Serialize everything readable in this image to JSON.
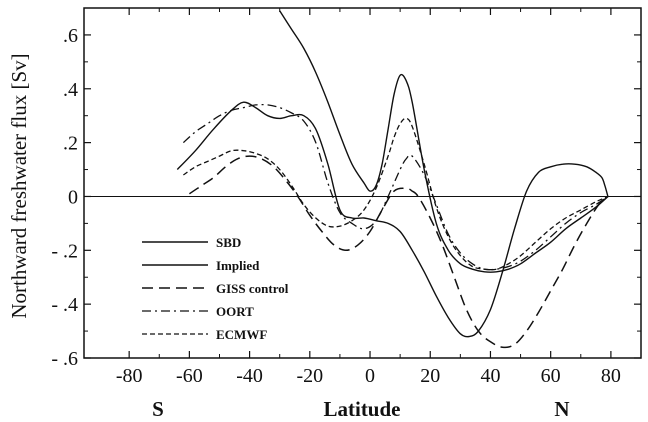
{
  "chart_data": {
    "type": "line",
    "xlabel": "Latitude",
    "ylabel": "Northward freshwater flux [Sv]",
    "xlim": [
      -95,
      90
    ],
    "ylim": [
      -0.6,
      0.7
    ],
    "x_ticks": [
      -80,
      -60,
      -40,
      -20,
      0,
      20,
      40,
      60,
      80
    ],
    "x_tick_labels": [
      "-80",
      "-60",
      "-40",
      "-20",
      "0",
      "20",
      "40",
      "60",
      "80"
    ],
    "y_ticks": [
      0.6,
      0.4,
      0.2,
      0,
      -0.2,
      -0.4,
      -0.6
    ],
    "y_tick_labels": [
      ".6",
      ".4",
      ".2",
      "0",
      "- .2",
      "- .4",
      "- .6"
    ],
    "hemisphere_labels": {
      "south": "S",
      "north": "N"
    },
    "legend_position": "lower-left",
    "zero_line": true,
    "grid": false,
    "series": [
      {
        "name": "SBD",
        "dash": "solid",
        "x": [
          -64,
          -58,
          -52,
          -46,
          -42,
          -38,
          -34,
          -30,
          -26,
          -22,
          -18,
          -14,
          -10,
          -6,
          -2,
          2,
          6,
          10,
          14,
          18,
          22,
          26,
          30,
          33,
          36,
          40,
          44,
          48,
          52,
          56,
          60,
          64,
          68,
          72,
          75,
          77,
          78,
          79
        ],
        "y": [
          0.1,
          0.17,
          0.25,
          0.32,
          0.35,
          0.33,
          0.3,
          0.29,
          0.3,
          0.3,
          0.25,
          0.12,
          -0.05,
          -0.08,
          -0.08,
          -0.09,
          -0.1,
          -0.13,
          -0.2,
          -0.28,
          -0.37,
          -0.45,
          -0.51,
          -0.52,
          -0.5,
          -0.42,
          -0.28,
          -0.12,
          0.02,
          0.09,
          0.11,
          0.12,
          0.12,
          0.11,
          0.09,
          0.07,
          0.04,
          0.0
        ]
      },
      {
        "name": "Implied",
        "dash": "solid",
        "x": [
          -30,
          -26,
          -22,
          -18,
          -14,
          -10,
          -6,
          -2,
          0,
          2,
          4,
          6,
          8,
          10,
          12,
          14,
          18,
          22,
          26,
          30,
          34,
          38,
          42,
          46,
          50,
          55,
          60,
          65,
          70,
          75,
          79
        ],
        "y": [
          0.69,
          0.62,
          0.55,
          0.46,
          0.35,
          0.23,
          0.12,
          0.05,
          0.02,
          0.04,
          0.12,
          0.25,
          0.38,
          0.45,
          0.43,
          0.35,
          0.1,
          -0.1,
          -0.2,
          -0.25,
          -0.27,
          -0.28,
          -0.28,
          -0.27,
          -0.25,
          -0.21,
          -0.17,
          -0.12,
          -0.08,
          -0.04,
          0.0
        ]
      },
      {
        "name": "GISS control",
        "dash": "dashed",
        "x": [
          -60,
          -56,
          -52,
          -48,
          -44,
          -40,
          -36,
          -32,
          -28,
          -24,
          -20,
          -16,
          -12,
          -8,
          -4,
          0,
          4,
          8,
          12,
          14,
          16,
          20,
          24,
          28,
          32,
          36,
          40,
          44,
          48,
          52,
          56,
          60,
          64,
          68,
          72,
          76,
          79
        ],
        "y": [
          0.01,
          0.04,
          0.07,
          0.11,
          0.14,
          0.15,
          0.14,
          0.11,
          0.06,
          0.0,
          -0.07,
          -0.13,
          -0.18,
          -0.2,
          -0.18,
          -0.13,
          -0.05,
          0.02,
          0.03,
          0.02,
          0.0,
          -0.08,
          -0.18,
          -0.3,
          -0.42,
          -0.5,
          -0.54,
          -0.56,
          -0.55,
          -0.5,
          -0.43,
          -0.35,
          -0.27,
          -0.18,
          -0.1,
          -0.03,
          0.0
        ]
      },
      {
        "name": "OORT",
        "dash": "dashdot",
        "x": [
          -62,
          -58,
          -54,
          -50,
          -46,
          -42,
          -38,
          -34,
          -30,
          -26,
          -22,
          -18,
          -14,
          -10,
          -6,
          -2,
          2,
          6,
          10,
          12,
          14,
          18,
          22,
          26,
          30,
          34,
          38,
          42,
          46,
          50,
          55,
          60,
          65,
          70,
          75,
          79
        ],
        "y": [
          0.2,
          0.24,
          0.27,
          0.3,
          0.32,
          0.33,
          0.34,
          0.34,
          0.33,
          0.31,
          0.28,
          0.2,
          0.05,
          -0.06,
          -0.1,
          -0.12,
          -0.09,
          0.0,
          0.1,
          0.14,
          0.15,
          0.08,
          -0.03,
          -0.14,
          -0.21,
          -0.25,
          -0.27,
          -0.27,
          -0.26,
          -0.24,
          -0.2,
          -0.15,
          -0.1,
          -0.06,
          -0.03,
          0.0
        ]
      },
      {
        "name": "ECMWF",
        "dash": "shortdash",
        "x": [
          -62,
          -58,
          -54,
          -50,
          -46,
          -42,
          -38,
          -34,
          -30,
          -26,
          -22,
          -18,
          -14,
          -10,
          -6,
          -2,
          2,
          6,
          8,
          10,
          12,
          14,
          18,
          22,
          26,
          30,
          34,
          38,
          42,
          46,
          50,
          55,
          60,
          65,
          70,
          75,
          79
        ],
        "y": [
          0.08,
          0.11,
          0.13,
          0.15,
          0.17,
          0.17,
          0.16,
          0.14,
          0.1,
          0.04,
          -0.03,
          -0.08,
          -0.11,
          -0.11,
          -0.09,
          -0.05,
          0.03,
          0.15,
          0.22,
          0.27,
          0.29,
          0.26,
          0.12,
          -0.04,
          -0.15,
          -0.22,
          -0.26,
          -0.27,
          -0.27,
          -0.25,
          -0.22,
          -0.17,
          -0.12,
          -0.08,
          -0.05,
          -0.02,
          0.0
        ]
      }
    ]
  }
}
